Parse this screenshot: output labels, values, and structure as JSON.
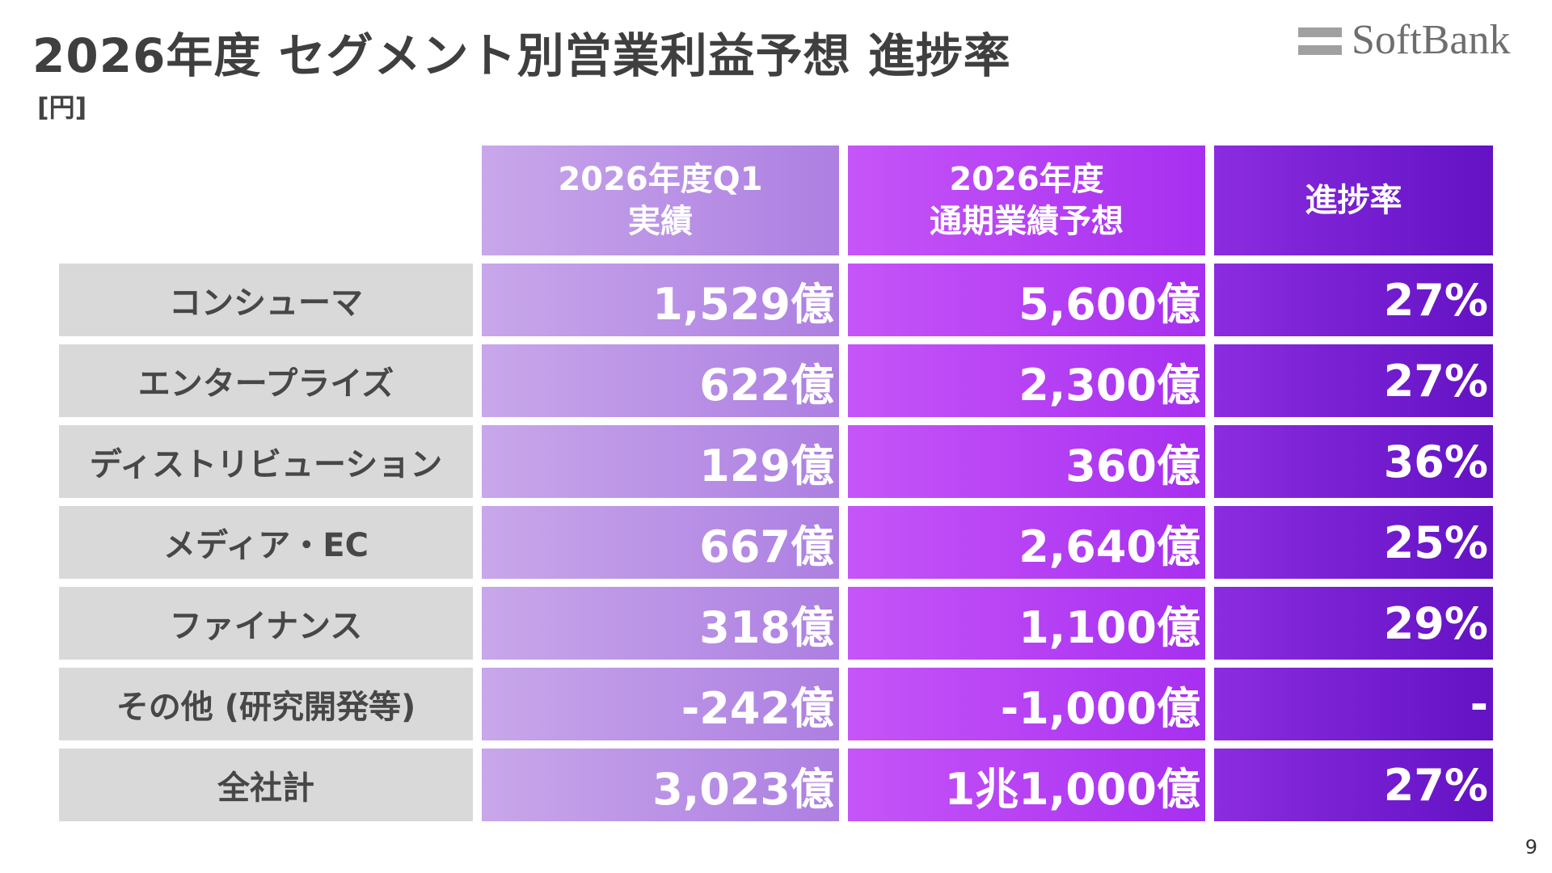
{
  "slide": {
    "title": "2026年度 セグメント別営業利益予想 進捗率",
    "unit": "[円]",
    "page_number": "9"
  },
  "logo": {
    "text": "SoftBank"
  },
  "table": {
    "headers": [
      {
        "line1": "2026年度Q1",
        "line2": "実績"
      },
      {
        "line1": "2026年度",
        "line2": "通期業績予想"
      },
      {
        "line1": "進捗率",
        "line2": ""
      }
    ],
    "rows": [
      {
        "label": "コンシューマ",
        "q1_actual": "1,529億",
        "fy_forecast": "5,600億",
        "progress": "27%"
      },
      {
        "label": "エンタープライズ",
        "q1_actual": "622億",
        "fy_forecast": "2,300億",
        "progress": "27%"
      },
      {
        "label": "ディストリビューション",
        "q1_actual": "129億",
        "fy_forecast": "360億",
        "progress": "36%"
      },
      {
        "label": "メディア・EC",
        "q1_actual": "667億",
        "fy_forecast": "2,640億",
        "progress": "25%"
      },
      {
        "label": "ファイナンス",
        "q1_actual": "318億",
        "fy_forecast": "1,100億",
        "progress": "29%"
      },
      {
        "label": "その他 (研究開発等)",
        "q1_actual": "-242億",
        "fy_forecast": "-1,000億",
        "progress": "-"
      },
      {
        "label": "全社計",
        "q1_actual": "3,023億",
        "fy_forecast": "1兆1,000億",
        "progress": "27%"
      }
    ]
  },
  "colors": {
    "col1": "#b98fe6",
    "col2": "#b946f5",
    "col3": "#7a1ed6",
    "label_bg": "#d9d9d9"
  }
}
